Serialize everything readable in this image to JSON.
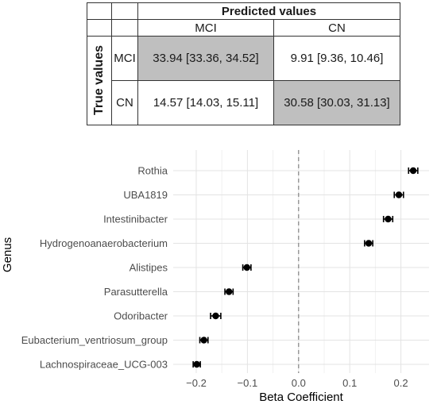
{
  "confusion_matrix": {
    "header_predicted": "Predicted values",
    "header_true": "True values",
    "col_labels": [
      "MCI",
      "CN"
    ],
    "row_labels": [
      "MCI",
      "CN"
    ],
    "cells": [
      [
        "33.94 [33.36, 34.52]",
        "9.91 [9.36, 10.46]"
      ],
      [
        "14.57 [14.03, 15.11]",
        "30.58 [30.03, 31.13]"
      ]
    ],
    "shaded_color": "#bfbfbf"
  },
  "chart_data": {
    "type": "scatter",
    "xlabel": "Beta Coefficient",
    "ylabel": "Genus",
    "xlim": [
      -0.245,
      0.255
    ],
    "xticks": [
      -0.2,
      -0.1,
      0.0,
      0.1,
      0.2
    ],
    "xtick_labels": [
      "−0.2",
      "−0.1",
      "0.0",
      "0.1",
      "0.2"
    ],
    "reference_line": 0.0,
    "grid": true,
    "point_color": "#000000",
    "categories": [
      "Rothia",
      "UBA1819",
      "Intestinibacter",
      "Hydrogenoanaerobacterium",
      "Alistipes",
      "Parasutterella",
      "Odoribacter",
      "Eubacterium_ventriosum_group",
      "Lachnospiraceae_UCG-003"
    ],
    "values": [
      0.224,
      0.196,
      0.175,
      0.137,
      -0.101,
      -0.136,
      -0.162,
      -0.185,
      -0.199
    ],
    "ci_low": [
      0.215,
      0.187,
      0.166,
      0.129,
      -0.109,
      -0.144,
      -0.172,
      -0.193,
      -0.206
    ],
    "ci_high": [
      0.233,
      0.205,
      0.184,
      0.145,
      -0.093,
      -0.128,
      -0.152,
      -0.177,
      -0.192
    ]
  }
}
